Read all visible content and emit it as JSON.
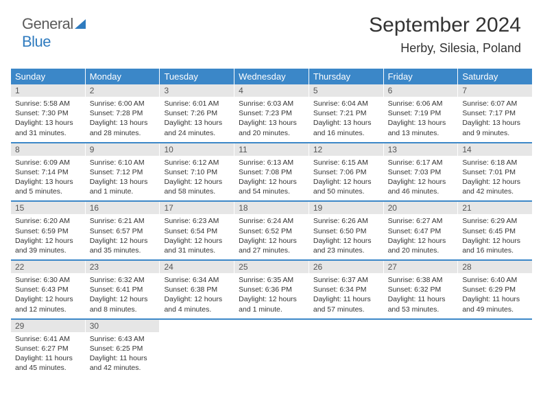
{
  "logo": {
    "part1": "General",
    "part2": "Blue"
  },
  "title": "September 2024",
  "location": "Herby, Silesia, Poland",
  "colors": {
    "header_bg": "#3b87c8",
    "header_fg": "#ffffff",
    "daynum_bg": "#e6e6e6",
    "text": "#333333",
    "logo_gray": "#5a5a5a",
    "logo_blue": "#2f7bbf"
  },
  "day_labels": [
    "Sunday",
    "Monday",
    "Tuesday",
    "Wednesday",
    "Thursday",
    "Friday",
    "Saturday"
  ],
  "weeks": [
    [
      {
        "n": "1",
        "sunrise": "5:58 AM",
        "sunset": "7:30 PM",
        "daylight": "13 hours and 31 minutes."
      },
      {
        "n": "2",
        "sunrise": "6:00 AM",
        "sunset": "7:28 PM",
        "daylight": "13 hours and 28 minutes."
      },
      {
        "n": "3",
        "sunrise": "6:01 AM",
        "sunset": "7:26 PM",
        "daylight": "13 hours and 24 minutes."
      },
      {
        "n": "4",
        "sunrise": "6:03 AM",
        "sunset": "7:23 PM",
        "daylight": "13 hours and 20 minutes."
      },
      {
        "n": "5",
        "sunrise": "6:04 AM",
        "sunset": "7:21 PM",
        "daylight": "13 hours and 16 minutes."
      },
      {
        "n": "6",
        "sunrise": "6:06 AM",
        "sunset": "7:19 PM",
        "daylight": "13 hours and 13 minutes."
      },
      {
        "n": "7",
        "sunrise": "6:07 AM",
        "sunset": "7:17 PM",
        "daylight": "13 hours and 9 minutes."
      }
    ],
    [
      {
        "n": "8",
        "sunrise": "6:09 AM",
        "sunset": "7:14 PM",
        "daylight": "13 hours and 5 minutes."
      },
      {
        "n": "9",
        "sunrise": "6:10 AM",
        "sunset": "7:12 PM",
        "daylight": "13 hours and 1 minute."
      },
      {
        "n": "10",
        "sunrise": "6:12 AM",
        "sunset": "7:10 PM",
        "daylight": "12 hours and 58 minutes."
      },
      {
        "n": "11",
        "sunrise": "6:13 AM",
        "sunset": "7:08 PM",
        "daylight": "12 hours and 54 minutes."
      },
      {
        "n": "12",
        "sunrise": "6:15 AM",
        "sunset": "7:06 PM",
        "daylight": "12 hours and 50 minutes."
      },
      {
        "n": "13",
        "sunrise": "6:17 AM",
        "sunset": "7:03 PM",
        "daylight": "12 hours and 46 minutes."
      },
      {
        "n": "14",
        "sunrise": "6:18 AM",
        "sunset": "7:01 PM",
        "daylight": "12 hours and 42 minutes."
      }
    ],
    [
      {
        "n": "15",
        "sunrise": "6:20 AM",
        "sunset": "6:59 PM",
        "daylight": "12 hours and 39 minutes."
      },
      {
        "n": "16",
        "sunrise": "6:21 AM",
        "sunset": "6:57 PM",
        "daylight": "12 hours and 35 minutes."
      },
      {
        "n": "17",
        "sunrise": "6:23 AM",
        "sunset": "6:54 PM",
        "daylight": "12 hours and 31 minutes."
      },
      {
        "n": "18",
        "sunrise": "6:24 AM",
        "sunset": "6:52 PM",
        "daylight": "12 hours and 27 minutes."
      },
      {
        "n": "19",
        "sunrise": "6:26 AM",
        "sunset": "6:50 PM",
        "daylight": "12 hours and 23 minutes."
      },
      {
        "n": "20",
        "sunrise": "6:27 AM",
        "sunset": "6:47 PM",
        "daylight": "12 hours and 20 minutes."
      },
      {
        "n": "21",
        "sunrise": "6:29 AM",
        "sunset": "6:45 PM",
        "daylight": "12 hours and 16 minutes."
      }
    ],
    [
      {
        "n": "22",
        "sunrise": "6:30 AM",
        "sunset": "6:43 PM",
        "daylight": "12 hours and 12 minutes."
      },
      {
        "n": "23",
        "sunrise": "6:32 AM",
        "sunset": "6:41 PM",
        "daylight": "12 hours and 8 minutes."
      },
      {
        "n": "24",
        "sunrise": "6:34 AM",
        "sunset": "6:38 PM",
        "daylight": "12 hours and 4 minutes."
      },
      {
        "n": "25",
        "sunrise": "6:35 AM",
        "sunset": "6:36 PM",
        "daylight": "12 hours and 1 minute."
      },
      {
        "n": "26",
        "sunrise": "6:37 AM",
        "sunset": "6:34 PM",
        "daylight": "11 hours and 57 minutes."
      },
      {
        "n": "27",
        "sunrise": "6:38 AM",
        "sunset": "6:32 PM",
        "daylight": "11 hours and 53 minutes."
      },
      {
        "n": "28",
        "sunrise": "6:40 AM",
        "sunset": "6:29 PM",
        "daylight": "11 hours and 49 minutes."
      }
    ],
    [
      {
        "n": "29",
        "sunrise": "6:41 AM",
        "sunset": "6:27 PM",
        "daylight": "11 hours and 45 minutes."
      },
      {
        "n": "30",
        "sunrise": "6:43 AM",
        "sunset": "6:25 PM",
        "daylight": "11 hours and 42 minutes."
      },
      null,
      null,
      null,
      null,
      null
    ]
  ],
  "labels": {
    "sunrise_prefix": "Sunrise: ",
    "sunset_prefix": "Sunset: ",
    "daylight_prefix": "Daylight: "
  }
}
